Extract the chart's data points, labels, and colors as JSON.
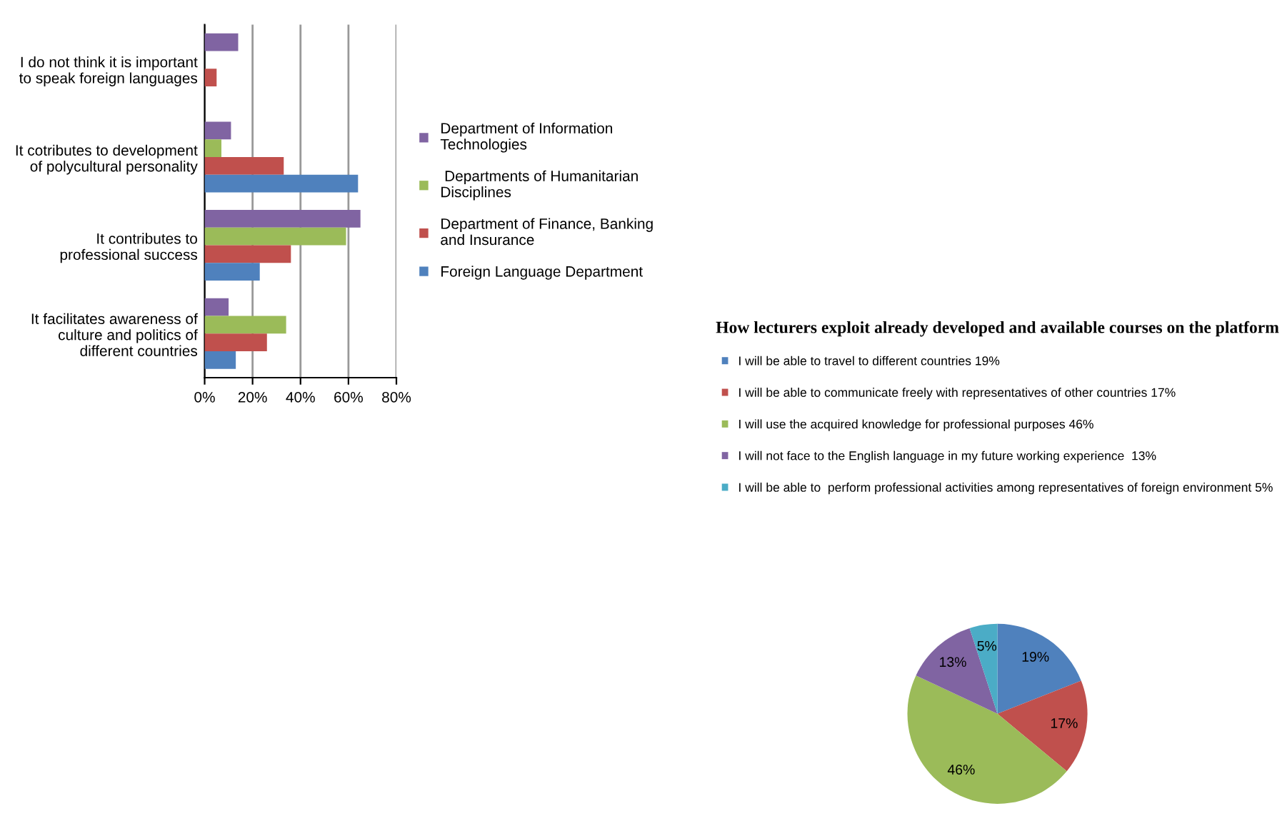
{
  "chart_data": [
    {
      "type": "bar",
      "orientation": "horizontal",
      "categories": [
        "I do not think it is important\nto speak foreign languages",
        "It cotributes to development\nof polycultural personality",
        "It contributes to\nprofessional success",
        "It facilitates awareness of\nculture and politics of\ndifferent countries"
      ],
      "series": [
        {
          "name": "Department of Information\nTechnologies",
          "color": "#8064a2",
          "values": [
            14,
            11,
            65,
            10
          ]
        },
        {
          "name": " Departments of Humanitarian\nDisciplines",
          "color": "#9bbb59",
          "values": [
            null,
            7,
            59,
            34
          ]
        },
        {
          "name": "Department of Finance, Banking\nand Insurance",
          "color": "#c0504d",
          "values": [
            5,
            33,
            36,
            26
          ]
        },
        {
          "name": "Foreign Language Department",
          "color": "#4f81bd",
          "values": [
            null,
            64,
            23,
            13
          ]
        }
      ],
      "xlim": [
        0,
        80
      ],
      "xticks": [
        {
          "value": 0,
          "label": "0%"
        },
        {
          "value": 20,
          "label": "20%"
        },
        {
          "value": 40,
          "label": "40%"
        },
        {
          "value": 60,
          "label": "60%"
        },
        {
          "value": 80,
          "label": "80%"
        }
      ],
      "grid": "x",
      "legend": "right"
    },
    {
      "type": "pie",
      "title": "How lecturers exploit already developed and available courses on the platform",
      "categories": [
        "I will be able to travel to different countries 19%",
        "I will be able to communicate freely with representatives of other countries 17%",
        "I will use the acquired knowledge for professional purposes 46%",
        "I will not face to the English language in my future working experience  13%",
        "I will be able to  perform professional activities among representatives of foreign environment 5%"
      ],
      "values": [
        19,
        17,
        46,
        13,
        5
      ],
      "colors": [
        "#4f81bd",
        "#c0504d",
        "#9bbb59",
        "#8064a2",
        "#4bacc6"
      ],
      "value_labels": [
        "19%",
        "17%",
        "46%",
        "13%",
        "5%"
      ],
      "legend": "top"
    }
  ]
}
